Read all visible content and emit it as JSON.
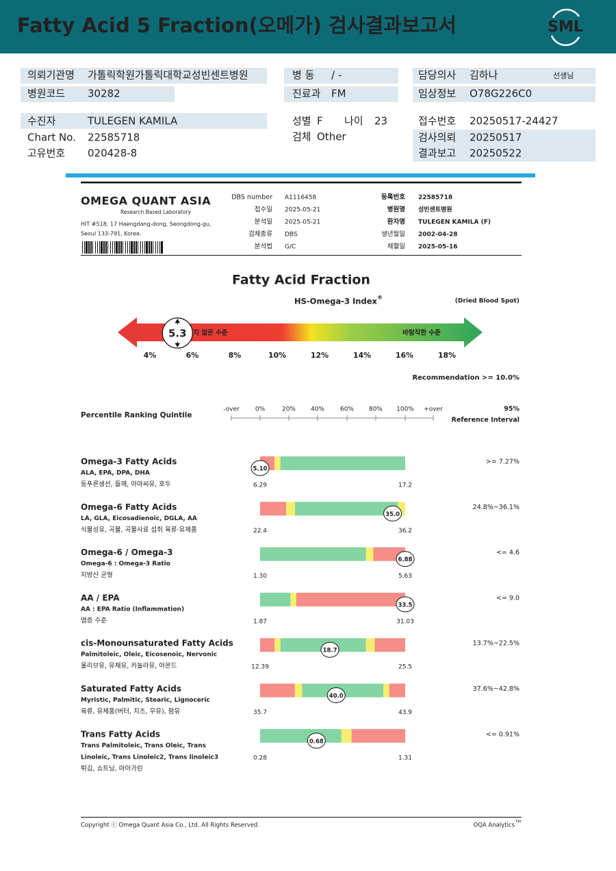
{
  "header": {
    "title": "Fatty Acid 5 Fraction(오메가) 검사결과보고서",
    "logo": "SML"
  },
  "info": {
    "institution": {
      "label": "의뢰기관명",
      "value": "가톨릭학원가톨릭대학교성빈센트병원"
    },
    "hospital_code": {
      "label": "병원코드",
      "value": "30282"
    },
    "patient": {
      "label": "수진자",
      "value": "TULEGEN KAMILA"
    },
    "chart_no": {
      "label": "Chart No.",
      "value": "22585718"
    },
    "unique_no": {
      "label": "고유번호",
      "value": "020428-8"
    },
    "ward": {
      "label": "병   동",
      "value": "/ -"
    },
    "department": {
      "label": "진료과",
      "value": "FM"
    },
    "sex": {
      "label": "성별",
      "value": "F"
    },
    "age": {
      "label": "나이",
      "value": "23"
    },
    "specimen": {
      "label": "검체",
      "value": "Other"
    },
    "doctor": {
      "label": "담당의사",
      "value": "김하나",
      "suffix": "선생님"
    },
    "clinical": {
      "label": "임상정보",
      "value": "O78G226C0"
    },
    "receipt_no": {
      "label": "접수번호",
      "value": "20250517-24427"
    },
    "requested": {
      "label": "검사의뢰",
      "value": "20250517"
    },
    "reported": {
      "label": "결과보고",
      "value": "20250522"
    }
  },
  "report": {
    "lab": {
      "name": "OMEGA QUANT ASIA",
      "tagline": "Research Based Laboratory",
      "address": [
        "HIT #518, 17 Haengdang-dong, Seongdong-gu,",
        "Seoul 133-791, Korea."
      ]
    },
    "sample_fields": [
      {
        "label": "DBS number",
        "value": "A1116458"
      },
      {
        "label": "접수일",
        "value": "2025-05-21"
      },
      {
        "label": "분석일",
        "value": "2025-05-21"
      },
      {
        "label": "검체종류",
        "value": "DBS"
      },
      {
        "label": "분석법",
        "value": "G/C"
      }
    ],
    "patient_fields": [
      {
        "label": "등록번호",
        "value": "22585718"
      },
      {
        "label": "병원명",
        "value": "성빈센트병원"
      },
      {
        "label": "환자명",
        "value": "TULEGEN KAMILA (F)"
      },
      {
        "label": "생년월일",
        "value": "2002-04-28"
      },
      {
        "label": "채혈일",
        "value": "2025-05-16"
      }
    ],
    "title": "Fatty Acid Fraction",
    "index": {
      "title": "HS-Omega-3 Index",
      "mark": "®",
      "specimen": "(Dried Blood Spot)",
      "low_label": "바람직하지 않은 수준",
      "high_label": "바람직한 수준",
      "value": 5.3,
      "ticks": [
        {
          "value": 4,
          "label": "4%"
        },
        {
          "value": 6,
          "label": "6%"
        },
        {
          "value": 8,
          "label": "8%"
        },
        {
          "value": 10,
          "label": "10%"
        },
        {
          "value": 12,
          "label": "12%"
        },
        {
          "value": 14,
          "label": "14%"
        },
        {
          "value": 16,
          "label": "16%"
        },
        {
          "value": 18,
          "label": "18%"
        }
      ],
      "recommendation": "Recommendation  >= 10.0%"
    },
    "ranking": {
      "title": "Percentile Ranking Quintile",
      "scale": [
        "-over",
        "0%",
        "20%",
        "40%",
        "60%",
        "80%",
        "100%",
        "+over"
      ],
      "reference_title": [
        "95%",
        "Reference Interval"
      ],
      "rows": [
        {
          "name": "Omega-3 Fatty Acids",
          "detail": [
            "ALA, EPA, DPA, DHA"
          ],
          "foods": "등푸른생선, 들깨, 아마씨유, 호두",
          "result": "5.10",
          "low": "6.29",
          "high": "17.2",
          "reference": ">= 7.27%"
        },
        {
          "name": "Omega-6 Fatty Acids",
          "detail": [
            "LA, GLA, Eicosadienoic, DGLA, AA"
          ],
          "foods": "식물성유, 곡물, 곡물사료 섭취 육류·유제품",
          "result": "35.0",
          "low": "22.4",
          "high": "36.2",
          "reference": "24.8%~36.1%"
        },
        {
          "name": "Omega-6 / Omega-3",
          "detail": [
            "Omega-6 : Omega-3 Ratio"
          ],
          "foods": "지방산 균형",
          "result": "6.88",
          "low": "1.30",
          "high": "5.63",
          "reference": "<= 4.6"
        },
        {
          "name": "AA / EPA",
          "detail": [
            "AA : EPA Ratio (Inflammation)"
          ],
          "foods": "염증 수준",
          "result": "33.5",
          "low": "1.87",
          "high": "31.03",
          "reference": "<= 9.0"
        },
        {
          "name": "cis-Monounsaturated Fatty Acids",
          "detail": [
            "Palmitoleic, Oleic, Eicosenoic, Nervonic"
          ],
          "foods": "올리브유, 유채유, 카놀라유, 아몬드",
          "result": "18.7",
          "low": "12.39",
          "high": "25.5",
          "reference": "13.7%~22.5%"
        },
        {
          "name": "Saturated Fatty Acids",
          "detail": [
            "Myristic, Palmitic, Stearic, Lignoceric"
          ],
          "foods": "육류, 유제품(버터, 치즈, 우유), 팜유",
          "result": "40.0",
          "low": "35.7",
          "high": "43.9",
          "reference": "37.6%~42.8%"
        },
        {
          "name": "Trans Fatty Acids",
          "detail": [
            "Trans Palmitoleic, Trans Oleic, Trans",
            "Linoleic, Trans Linoleic2, Trans linoleic3"
          ],
          "foods": "튀김, 쇼트닝, 마아가린",
          "result": "0.68",
          "low": "0.28",
          "high": "1.31",
          "reference": "<= 0.91%"
        }
      ]
    }
  },
  "footer": {
    "copyright": "Copyright ⓒ Omega Quant Asia Co., Ltd.  All Rights Reserved.",
    "brand": "OQA Analytics",
    "brand_mark": "TM"
  }
}
